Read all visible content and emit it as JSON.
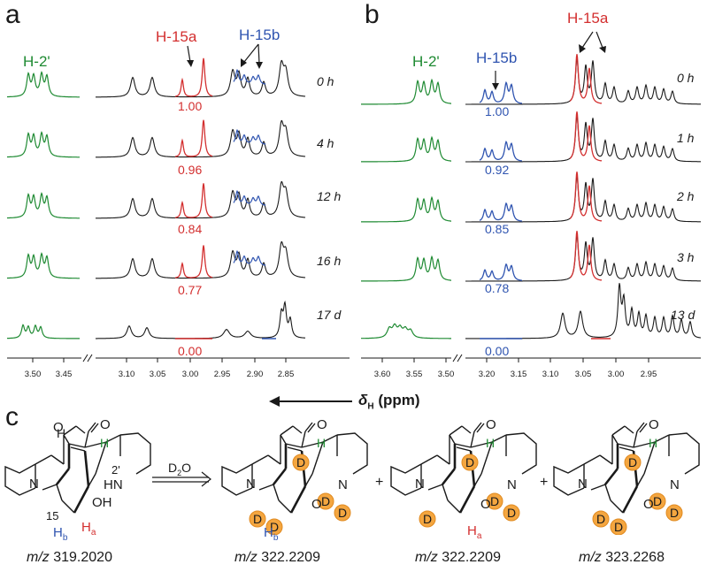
{
  "panel_a": {
    "letter": "a",
    "label_h2": "H-2'",
    "label_h15a": "H-15a",
    "label_h15b": "H-15b",
    "times": [
      "0 h",
      "4 h",
      "12 h",
      "16 h",
      "17 d"
    ],
    "integrals": [
      "1.00",
      "0.96",
      "0.84",
      "0.77",
      "0.00"
    ],
    "ticks": [
      "3.50",
      "3.45",
      "3.10",
      "3.05",
      "3.00",
      "2.95",
      "2.90",
      "2.85"
    ]
  },
  "panel_b": {
    "letter": "b",
    "label_h2": "H-2'",
    "label_h15b": "H-15b",
    "label_h15a": "H-15a",
    "times": [
      "0 h",
      "1 h",
      "2 h",
      "3 h",
      "13 d"
    ],
    "integrals": [
      "1.00",
      "0.92",
      "0.85",
      "0.78",
      "0.00"
    ],
    "ticks": [
      "3.60",
      "3.55",
      "3.50",
      "3.20",
      "3.15",
      "3.10",
      "3.05",
      "3.00",
      "2.95"
    ]
  },
  "axis_label": "δH (ppm)",
  "axis_symbol": "δ",
  "axis_sub": "H",
  "axis_unit": "(ppm)",
  "panel_c": {
    "letter": "c",
    "reagent": "D2O",
    "reagent_main": "D",
    "reagent_sub": "2",
    "reagent_tail": "O",
    "plus": "+",
    "compounds": [
      {
        "mz_label": "m/z",
        "mz_value": "319.2020"
      },
      {
        "mz_label": "m/z",
        "mz_value": "322.2209"
      },
      {
        "mz_label": "m/z",
        "mz_value": "322.2209"
      },
      {
        "mz_label": "m/z",
        "mz_value": "323.2268"
      }
    ],
    "atom_labels": {
      "N": "N",
      "NH": "HN",
      "OH": "OH",
      "O": "O",
      "H": "H",
      "D": "D",
      "C15": "15",
      "C2p": "2'",
      "Hb": "H",
      "Hb_sub": "b",
      "Ha": "H",
      "Ha_sub": "a"
    }
  },
  "colors": {
    "green": "#1e8a32",
    "red": "#d32f2f",
    "blue": "#2f54b0",
    "deuterium_fill": "#f4a640",
    "black": "#1a1a1a"
  }
}
